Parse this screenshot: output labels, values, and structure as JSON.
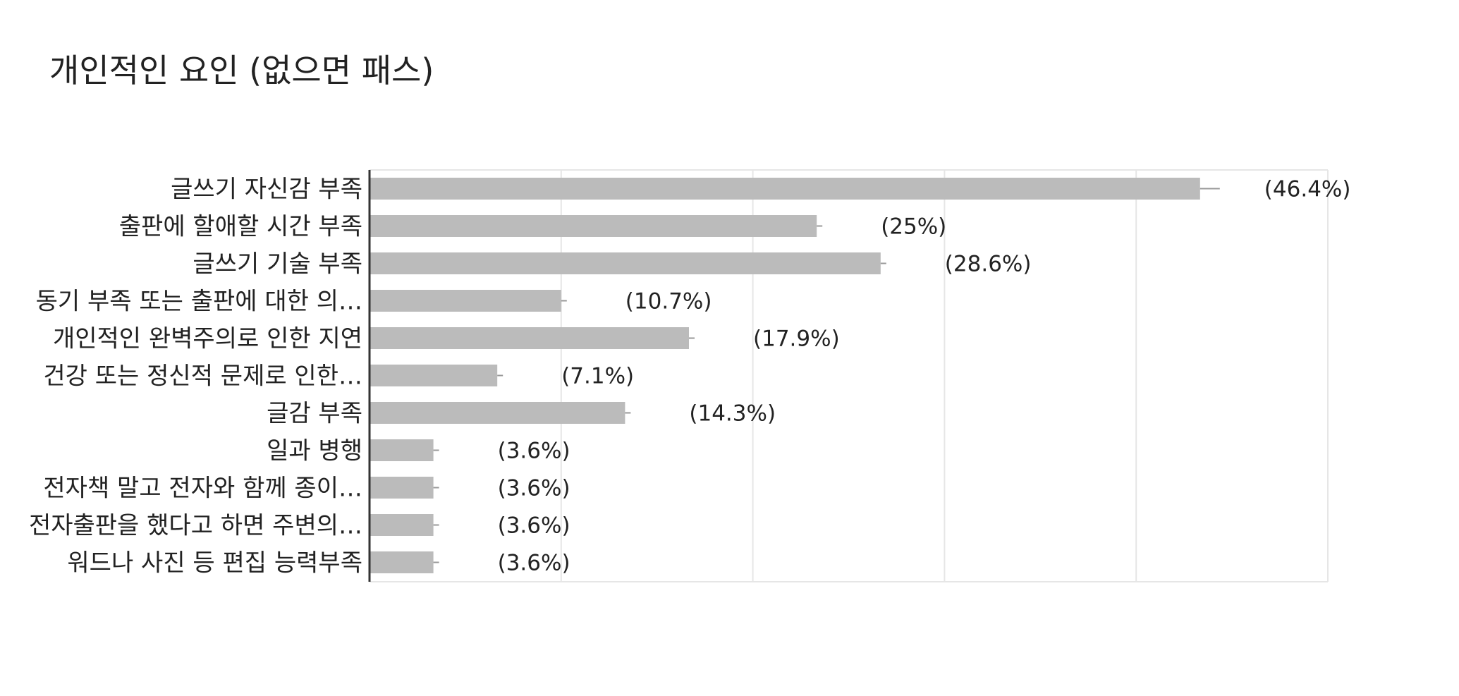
{
  "chart_data": {
    "type": "bar",
    "orientation": "horizontal",
    "title": "개인적인 요인 (없으면 패스)",
    "categories": [
      "글쓰기 자신감 부족",
      "출판에 할애할 시간 부족",
      "글쓰기 기술 부족",
      "동기 부족 또는 출판에 대한 의…",
      "개인적인 완벽주의로 인한 지연",
      "건강 또는 정신적 문제로 인한…",
      "글감 부족",
      "일과 병행",
      "전자책 말고 전자와 함께 종이…",
      "전자출판을 했다고 하면 주변의…",
      "워드나 사진 등 편집 능력부족"
    ],
    "values": [
      13,
      7,
      8,
      3,
      5,
      2,
      4,
      1,
      1,
      1,
      1
    ],
    "data_labels": [
      "(46.4%)",
      "(25%)",
      "(28.6%)",
      "(10.7%)",
      "(17.9%)",
      "(7.1%)",
      "(14.3%)",
      "(3.6%)",
      "(3.6%)",
      "(3.6%)",
      "(3.6%)"
    ],
    "xlim": [
      0,
      15
    ],
    "grid": true,
    "legend": "none",
    "colors": {
      "bar": "#bbbbbb",
      "grid": "#e6e6e6",
      "axis": "#333333",
      "label": "#222222",
      "errorbar": "#999999"
    }
  }
}
